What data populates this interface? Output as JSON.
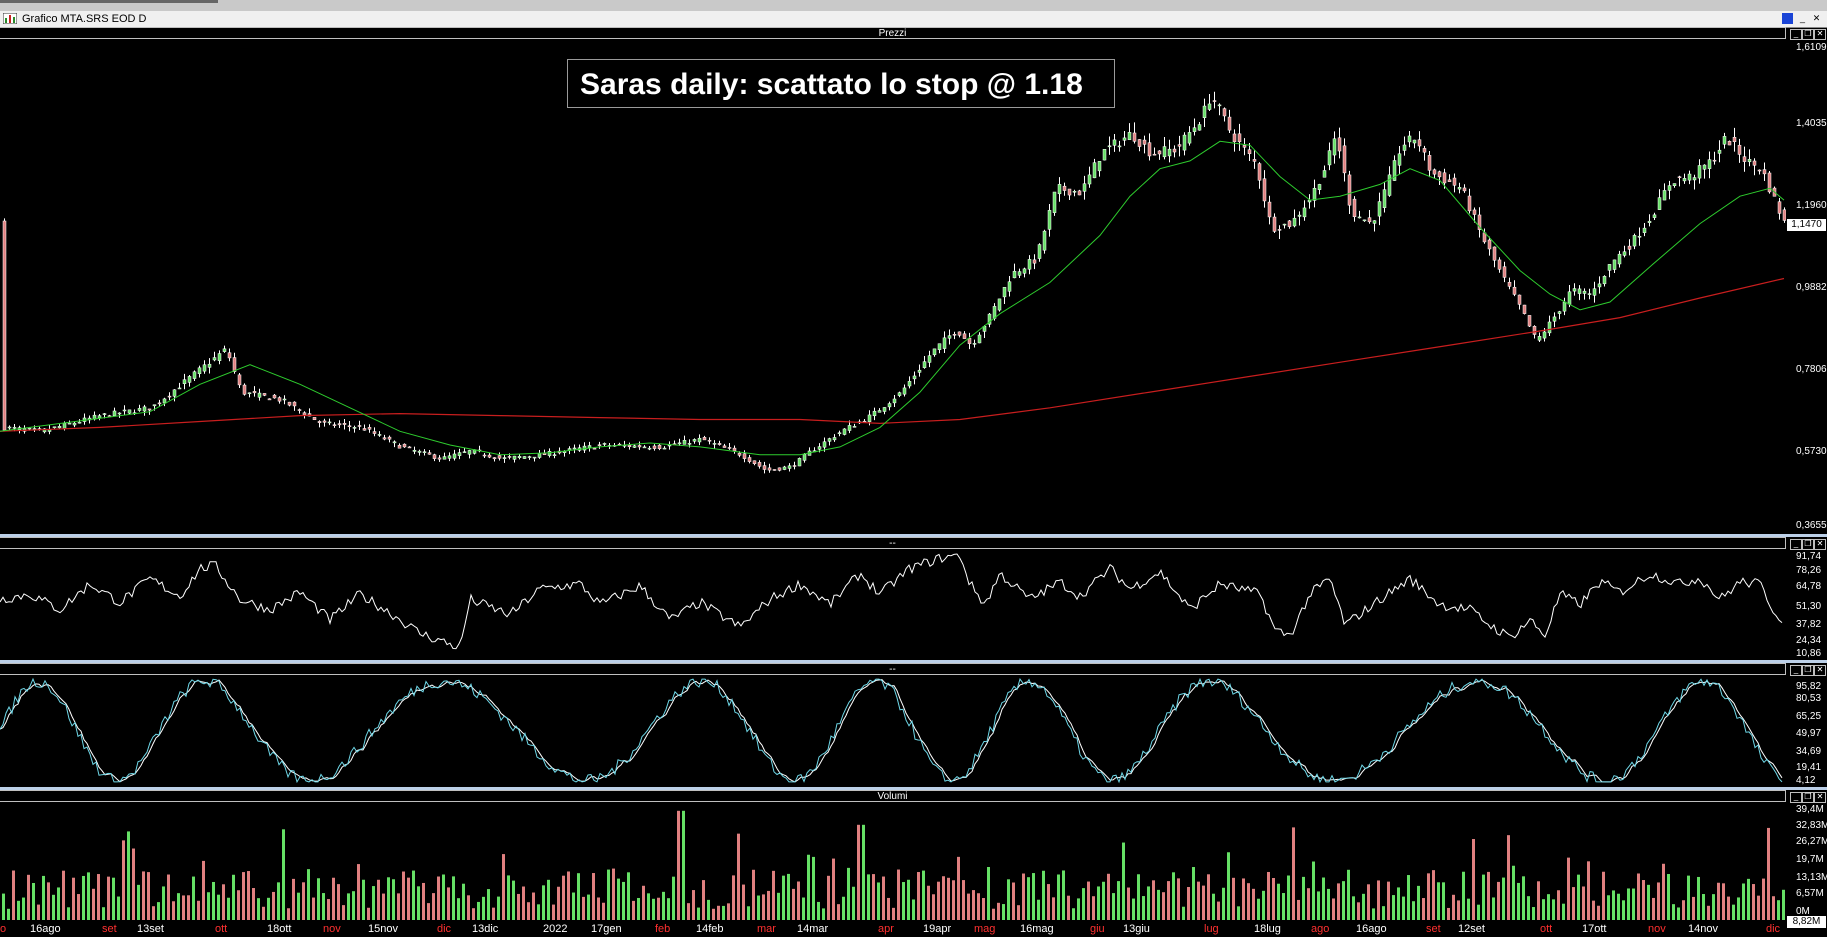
{
  "window": {
    "title": "Grafico MTA.SRS EOD D"
  },
  "panels": {
    "price": "Prezzi",
    "ind1": "--",
    "ind2": "--",
    "volume": "Volumi"
  },
  "controls": {
    "menu": "–",
    "min": "_",
    "restore": "❐",
    "close": "✕"
  },
  "annotation": "Saras daily: scattato lo stop @ 1.18",
  "price_axis": [
    "1,6109",
    "1,4035",
    "1,1960",
    "0,9882",
    "0,7806",
    "0,5730",
    "0,3655"
  ],
  "last_price": "1,1470",
  "rsi_axis": [
    "91,74",
    "78,26",
    "64,78",
    "51,30",
    "37,82",
    "24,34",
    "10,86"
  ],
  "stoch_axis": [
    "95,82",
    "80,53",
    "65,25",
    "49,97",
    "34,69",
    "19,41",
    "4,12"
  ],
  "volume_axis": [
    "39,4M",
    "32,83M",
    "26,27M",
    "19,7M",
    "13,13M",
    "6,57M",
    "0M"
  ],
  "last_volume": "8,82M",
  "x_labels": [
    {
      "t": "o",
      "red": true
    },
    {
      "t": "16ago",
      "red": false
    },
    {
      "t": "set",
      "red": true
    },
    {
      "t": "13set",
      "red": false
    },
    {
      "t": "ott",
      "red": true
    },
    {
      "t": "18ott",
      "red": false
    },
    {
      "t": "nov",
      "red": true
    },
    {
      "t": "15nov",
      "red": false
    },
    {
      "t": "dic",
      "red": true
    },
    {
      "t": "13dic",
      "red": false
    },
    {
      "t": "2022",
      "red": false
    },
    {
      "t": "17gen",
      "red": false
    },
    {
      "t": "feb",
      "red": true
    },
    {
      "t": "14feb",
      "red": false
    },
    {
      "t": "mar",
      "red": true
    },
    {
      "t": "14mar",
      "red": false
    },
    {
      "t": "apr",
      "red": true
    },
    {
      "t": "19apr",
      "red": false
    },
    {
      "t": "mag",
      "red": true
    },
    {
      "t": "16mag",
      "red": false
    },
    {
      "t": "giu",
      "red": true
    },
    {
      "t": "13giu",
      "red": false
    },
    {
      "t": "lug",
      "red": true
    },
    {
      "t": "18lug",
      "red": false
    },
    {
      "t": "ago",
      "red": true
    },
    {
      "t": "16ago",
      "red": false
    },
    {
      "t": "set",
      "red": true
    },
    {
      "t": "12set",
      "red": false
    },
    {
      "t": "ott",
      "red": true
    },
    {
      "t": "17ott",
      "red": false
    },
    {
      "t": "nov",
      "red": true
    },
    {
      "t": "14nov",
      "red": false
    },
    {
      "t": "dic",
      "red": true
    }
  ],
  "colors": {
    "up": "#66e066",
    "down": "#e08080",
    "ma_short": "#2ecc2e",
    "ma_long": "#c81e1e",
    "rsi": "#ffffff",
    "stoch_k": "#6fd8e8",
    "stoch_d": "#ffffff",
    "label_red": "#ff3030"
  },
  "chart_data": {
    "type": "candlestick",
    "price_range": [
      0.3655,
      1.6109
    ],
    "key_points": [
      {
        "x": "lug 2021",
        "close": 0.63
      },
      {
        "x": "ott 2021",
        "close": 0.83
      },
      {
        "x": "dic 2021",
        "close": 0.55
      },
      {
        "x": "mar 2022",
        "close": 0.51
      },
      {
        "x": "lug 2022",
        "close": 1.48
      },
      {
        "x": "ott 2022",
        "close": 0.83
      },
      {
        "x": "nov 2022",
        "close": 1.37
      },
      {
        "x": "dic 2022",
        "close": 1.147
      }
    ]
  }
}
